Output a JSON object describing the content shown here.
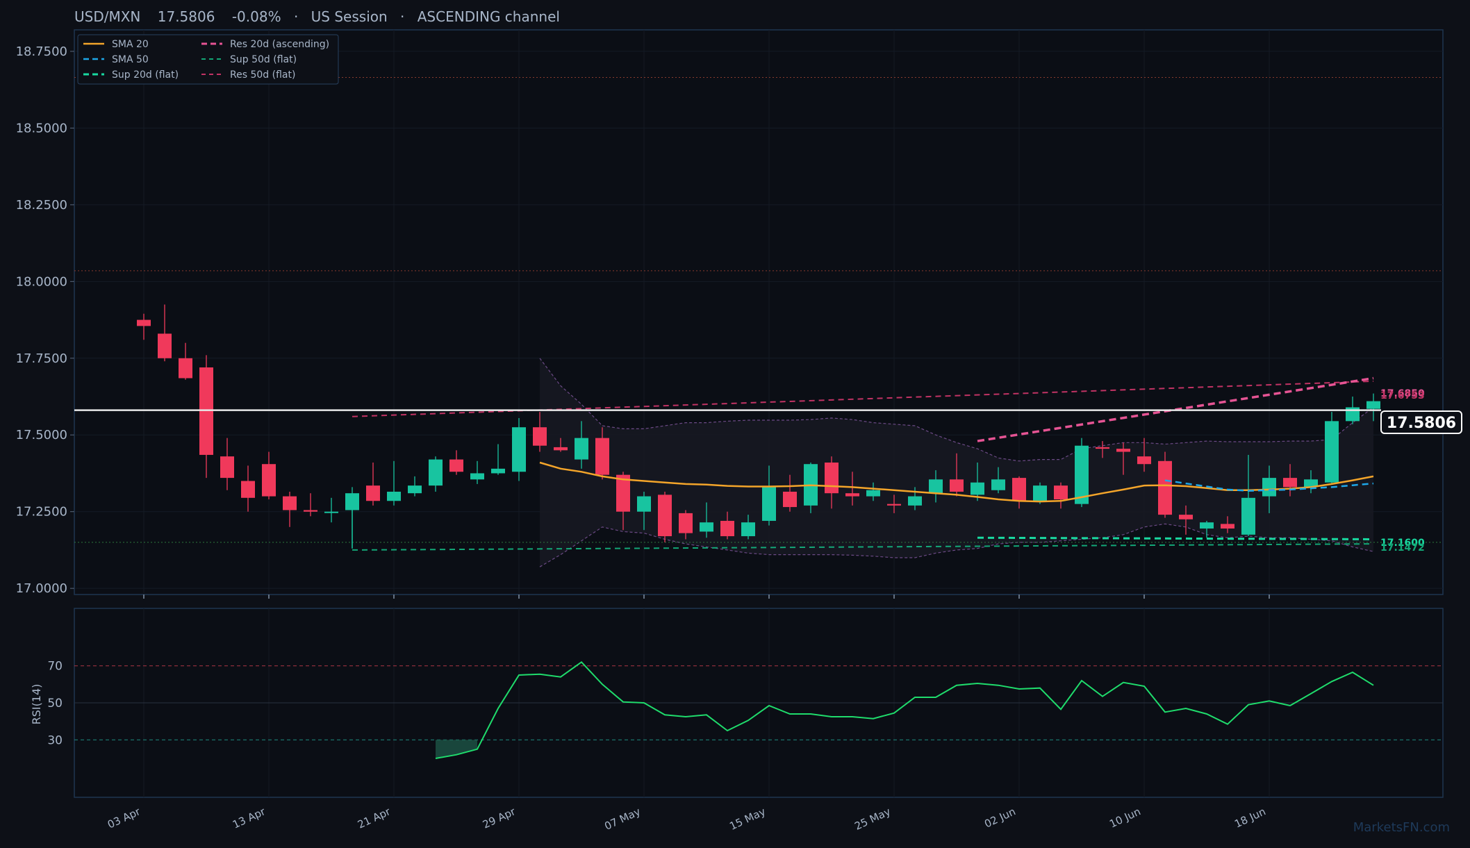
{
  "header": {
    "symbol": "USD/MXN",
    "price": "17.5806",
    "change": "-0.08%",
    "session": "US Session",
    "channel": "ASCENDING channel",
    "separator": "·"
  },
  "watermark": "MarketsFN.com",
  "colors": {
    "background": "#0d1017",
    "panel_border": "#1e3550",
    "up": "#18c4a0",
    "down": "#f0395b",
    "sma20": "#f4a52a",
    "sma50": "#1ea7e8",
    "res20": "#e65494",
    "res50": "#c23364",
    "sup20": "#19d9a0",
    "sup50": "#13a777",
    "rsi": "#1fdc6c",
    "text": "#a8b6c9",
    "band_fill": "#171922",
    "band_line": "#6c4a86"
  },
  "legend": {
    "sma20": "SMA 20",
    "sma50": "SMA 50",
    "sup20": "Sup 20d (flat)",
    "res20": "Res 20d (ascending)",
    "sup50": "Sup 50d (flat)",
    "res50": "Res 50d (flat)"
  },
  "chart_data": {
    "type": "candlestick",
    "price_axis": {
      "ylim": [
        16.98,
        18.82
      ],
      "ticks": [
        "17.0000",
        "17.2500",
        "17.5000",
        "17.7500",
        "18.0000",
        "18.2500",
        "18.5000",
        "18.7500"
      ]
    },
    "x_tick_labels": [
      {
        "label": "03 Apr",
        "index": 0
      },
      {
        "label": "13 Apr",
        "index": 6
      },
      {
        "label": "21 Apr",
        "index": 12
      },
      {
        "label": "29 Apr",
        "index": 18
      },
      {
        "label": "07 May",
        "index": 24
      },
      {
        "label": "15 May",
        "index": 30
      },
      {
        "label": "25 May",
        "index": 36
      },
      {
        "label": "02 Jun",
        "index": 42
      },
      {
        "label": "10 Jun",
        "index": 48
      },
      {
        "label": "18 Jun",
        "index": 54
      }
    ],
    "candles": [
      [
        17.875,
        17.895,
        17.81,
        17.855
      ],
      [
        17.83,
        17.925,
        17.74,
        17.75
      ],
      [
        17.75,
        17.8,
        17.68,
        17.685
      ],
      [
        17.72,
        17.76,
        17.36,
        17.435
      ],
      [
        17.43,
        17.49,
        17.32,
        17.36
      ],
      [
        17.35,
        17.4,
        17.25,
        17.295
      ],
      [
        17.405,
        17.445,
        17.29,
        17.3
      ],
      [
        17.3,
        17.315,
        17.2,
        17.255
      ],
      [
        17.255,
        17.31,
        17.235,
        17.25
      ],
      [
        17.25,
        17.295,
        17.215,
        17.25
      ],
      [
        17.255,
        17.33,
        17.13,
        17.31
      ],
      [
        17.335,
        17.41,
        17.27,
        17.285
      ],
      [
        17.285,
        17.415,
        17.27,
        17.315
      ],
      [
        17.31,
        17.365,
        17.3,
        17.335
      ],
      [
        17.335,
        17.43,
        17.315,
        17.42
      ],
      [
        17.42,
        17.45,
        17.37,
        17.38
      ],
      [
        17.355,
        17.415,
        17.34,
        17.375
      ],
      [
        17.375,
        17.47,
        17.37,
        17.39
      ],
      [
        17.38,
        17.555,
        17.35,
        17.525
      ],
      [
        17.525,
        17.575,
        17.445,
        17.465
      ],
      [
        17.46,
        17.49,
        17.445,
        17.45
      ],
      [
        17.42,
        17.545,
        17.39,
        17.49
      ],
      [
        17.49,
        17.525,
        17.355,
        17.37
      ],
      [
        17.37,
        17.38,
        17.19,
        17.25
      ],
      [
        17.25,
        17.315,
        17.19,
        17.3
      ],
      [
        17.305,
        17.315,
        17.15,
        17.17
      ],
      [
        17.245,
        17.255,
        17.16,
        17.18
      ],
      [
        17.185,
        17.28,
        17.165,
        17.215
      ],
      [
        17.22,
        17.25,
        17.16,
        17.17
      ],
      [
        17.17,
        17.24,
        17.16,
        17.215
      ],
      [
        17.22,
        17.4,
        17.205,
        17.33
      ],
      [
        17.315,
        17.37,
        17.25,
        17.265
      ],
      [
        17.27,
        17.41,
        17.245,
        17.405
      ],
      [
        17.41,
        17.43,
        17.26,
        17.31
      ],
      [
        17.31,
        17.38,
        17.27,
        17.3
      ],
      [
        17.3,
        17.345,
        17.285,
        17.32
      ],
      [
        17.275,
        17.305,
        17.245,
        17.27
      ],
      [
        17.27,
        17.33,
        17.255,
        17.3
      ],
      [
        17.31,
        17.385,
        17.28,
        17.355
      ],
      [
        17.355,
        17.44,
        17.3,
        17.315
      ],
      [
        17.305,
        17.41,
        17.285,
        17.345
      ],
      [
        17.32,
        17.395,
        17.31,
        17.355
      ],
      [
        17.36,
        17.365,
        17.26,
        17.285
      ],
      [
        17.285,
        17.345,
        17.275,
        17.335
      ],
      [
        17.335,
        17.345,
        17.26,
        17.29
      ],
      [
        17.275,
        17.49,
        17.265,
        17.465
      ],
      [
        17.46,
        17.48,
        17.425,
        17.455
      ],
      [
        17.455,
        17.475,
        17.37,
        17.445
      ],
      [
        17.43,
        17.49,
        17.38,
        17.405
      ],
      [
        17.415,
        17.445,
        17.23,
        17.24
      ],
      [
        17.24,
        17.27,
        17.175,
        17.225
      ],
      [
        17.195,
        17.22,
        17.165,
        17.215
      ],
      [
        17.21,
        17.235,
        17.18,
        17.195
      ],
      [
        17.175,
        17.435,
        17.17,
        17.295
      ],
      [
        17.3,
        17.4,
        17.245,
        17.36
      ],
      [
        17.36,
        17.405,
        17.3,
        17.33
      ],
      [
        17.33,
        17.385,
        17.31,
        17.355
      ],
      [
        17.345,
        17.575,
        17.34,
        17.545
      ],
      [
        17.545,
        17.625,
        17.535,
        17.59
      ],
      [
        17.585,
        17.635,
        17.545,
        17.61
      ]
    ],
    "sma20": [
      [
        19,
        17.41
      ],
      [
        20,
        17.39
      ],
      [
        21,
        17.38
      ],
      [
        22,
        17.365
      ],
      [
        23,
        17.355
      ],
      [
        24,
        17.35
      ],
      [
        25,
        17.345
      ],
      [
        26,
        17.34
      ],
      [
        27,
        17.338
      ],
      [
        28,
        17.334
      ],
      [
        29,
        17.332
      ],
      [
        30,
        17.332
      ],
      [
        31,
        17.333
      ],
      [
        32,
        17.336
      ],
      [
        33,
        17.333
      ],
      [
        34,
        17.33
      ],
      [
        35,
        17.325
      ],
      [
        36,
        17.32
      ],
      [
        37,
        17.315
      ],
      [
        38,
        17.31
      ],
      [
        39,
        17.305
      ],
      [
        40,
        17.298
      ],
      [
        41,
        17.29
      ],
      [
        42,
        17.285
      ],
      [
        43,
        17.283
      ],
      [
        44,
        17.285
      ],
      [
        45,
        17.297
      ],
      [
        46,
        17.31
      ],
      [
        47,
        17.322
      ],
      [
        48,
        17.335
      ],
      [
        49,
        17.336
      ],
      [
        50,
        17.333
      ],
      [
        51,
        17.327
      ],
      [
        52,
        17.32
      ],
      [
        53,
        17.32
      ],
      [
        54,
        17.322
      ],
      [
        55,
        17.325
      ],
      [
        56,
        17.33
      ],
      [
        57,
        17.34
      ],
      [
        58,
        17.352
      ],
      [
        59,
        17.365
      ]
    ],
    "sma50": [
      [
        49,
        17.352
      ],
      [
        50,
        17.342
      ],
      [
        51,
        17.332
      ],
      [
        52,
        17.322
      ],
      [
        53,
        17.318
      ],
      [
        54,
        17.32
      ],
      [
        55,
        17.322
      ],
      [
        56,
        17.326
      ],
      [
        57,
        17.33
      ],
      [
        58,
        17.336
      ],
      [
        59,
        17.342
      ]
    ],
    "res20_ascending": {
      "from": [
        40,
        17.48
      ],
      "to": [
        59,
        17.685
      ]
    },
    "res50_flat": {
      "from": [
        10,
        17.56
      ],
      "to": [
        59,
        17.675
      ]
    },
    "sup20_flat": {
      "from": [
        40,
        17.165
      ],
      "to": [
        59,
        17.16
      ]
    },
    "sup50_flat": {
      "from": [
        10,
        17.125
      ],
      "to": [
        59,
        17.145
      ]
    },
    "sup50_start_tick": [
      10,
      17.13
    ],
    "channel_band_upper": [
      [
        19,
        17.75
      ],
      [
        20,
        17.66
      ],
      [
        21,
        17.6
      ],
      [
        22,
        17.53
      ],
      [
        23,
        17.52
      ],
      [
        24,
        17.52
      ],
      [
        25,
        17.53
      ],
      [
        26,
        17.54
      ],
      [
        27,
        17.54
      ],
      [
        28,
        17.545
      ],
      [
        29,
        17.548
      ],
      [
        30,
        17.548
      ],
      [
        31,
        17.548
      ],
      [
        32,
        17.55
      ],
      [
        33,
        17.555
      ],
      [
        34,
        17.55
      ],
      [
        35,
        17.54
      ],
      [
        36,
        17.535
      ],
      [
        37,
        17.53
      ],
      [
        38,
        17.5
      ],
      [
        39,
        17.475
      ],
      [
        40,
        17.455
      ],
      [
        41,
        17.425
      ],
      [
        42,
        17.415
      ],
      [
        43,
        17.42
      ],
      [
        44,
        17.42
      ],
      [
        45,
        17.455
      ],
      [
        46,
        17.465
      ],
      [
        47,
        17.475
      ],
      [
        48,
        17.475
      ],
      [
        49,
        17.47
      ],
      [
        50,
        17.475
      ],
      [
        51,
        17.48
      ],
      [
        52,
        17.478
      ],
      [
        53,
        17.478
      ],
      [
        54,
        17.478
      ],
      [
        55,
        17.48
      ],
      [
        56,
        17.48
      ],
      [
        57,
        17.485
      ],
      [
        58,
        17.54
      ],
      [
        59,
        17.59
      ]
    ],
    "channel_band_lower": [
      [
        19,
        17.07
      ],
      [
        20,
        17.11
      ],
      [
        21,
        17.155
      ],
      [
        22,
        17.2
      ],
      [
        23,
        17.185
      ],
      [
        24,
        17.18
      ],
      [
        25,
        17.16
      ],
      [
        26,
        17.145
      ],
      [
        27,
        17.135
      ],
      [
        28,
        17.125
      ],
      [
        29,
        17.115
      ],
      [
        30,
        17.11
      ],
      [
        31,
        17.11
      ],
      [
        32,
        17.11
      ],
      [
        33,
        17.11
      ],
      [
        34,
        17.108
      ],
      [
        35,
        17.105
      ],
      [
        36,
        17.1
      ],
      [
        37,
        17.1
      ],
      [
        38,
        17.115
      ],
      [
        39,
        17.125
      ],
      [
        40,
        17.13
      ],
      [
        41,
        17.145
      ],
      [
        42,
        17.15
      ],
      [
        43,
        17.15
      ],
      [
        44,
        17.155
      ],
      [
        45,
        17.16
      ],
      [
        46,
        17.165
      ],
      [
        47,
        17.175
      ],
      [
        48,
        17.2
      ],
      [
        49,
        17.21
      ],
      [
        50,
        17.2
      ],
      [
        51,
        17.175
      ],
      [
        52,
        17.165
      ],
      [
        53,
        17.17
      ],
      [
        54,
        17.165
      ],
      [
        55,
        17.165
      ],
      [
        56,
        17.16
      ],
      [
        57,
        17.155
      ],
      [
        58,
        17.135
      ],
      [
        59,
        17.12
      ]
    ],
    "reference_lines": {
      "red_dotted_high": 18.665,
      "red_dotted_mid": 18.035,
      "green_dotted": 17.15
    },
    "current_price": 17.5806,
    "right_labels": {
      "res_top": "17.6850",
      "res_bottom": "17.6753",
      "sup_top": "17.1600",
      "sup_bottom": "17.1472"
    },
    "rsi": {
      "label": "RSI(14)",
      "ticks": [
        "30",
        "50",
        "70"
      ],
      "ylim": [
        -1,
        101
      ],
      "overbought": 70,
      "oversold": 30,
      "values": [
        [
          14,
          20
        ],
        [
          15,
          22
        ],
        [
          16,
          25
        ],
        [
          17,
          47
        ],
        [
          18,
          65
        ],
        [
          19,
          65.5
        ],
        [
          20,
          64
        ],
        [
          21,
          72
        ],
        [
          22,
          60
        ],
        [
          23,
          50.5
        ],
        [
          24,
          50
        ],
        [
          25,
          43.5
        ],
        [
          26,
          42.5
        ],
        [
          27,
          43.5
        ],
        [
          28,
          35
        ],
        [
          29,
          40.5
        ],
        [
          30,
          48.5
        ],
        [
          31,
          44
        ],
        [
          32,
          44
        ],
        [
          33,
          42.5
        ],
        [
          34,
          42.5
        ],
        [
          35,
          41.5
        ],
        [
          36,
          44.5
        ],
        [
          37,
          53
        ],
        [
          38,
          53
        ],
        [
          39,
          59.5
        ],
        [
          40,
          60.5
        ],
        [
          41,
          59.5
        ],
        [
          42,
          57.5
        ],
        [
          43,
          58
        ],
        [
          44,
          46.5
        ],
        [
          45,
          62
        ],
        [
          46,
          53.5
        ],
        [
          47,
          61
        ],
        [
          48,
          59
        ],
        [
          49,
          45
        ],
        [
          50,
          47
        ],
        [
          51,
          44
        ],
        [
          52,
          38.5
        ],
        [
          53,
          49
        ],
        [
          54,
          51
        ],
        [
          55,
          48.5
        ],
        [
          56,
          55
        ],
        [
          57,
          61.5
        ],
        [
          58,
          66.5
        ],
        [
          59,
          59.5
        ]
      ]
    }
  }
}
